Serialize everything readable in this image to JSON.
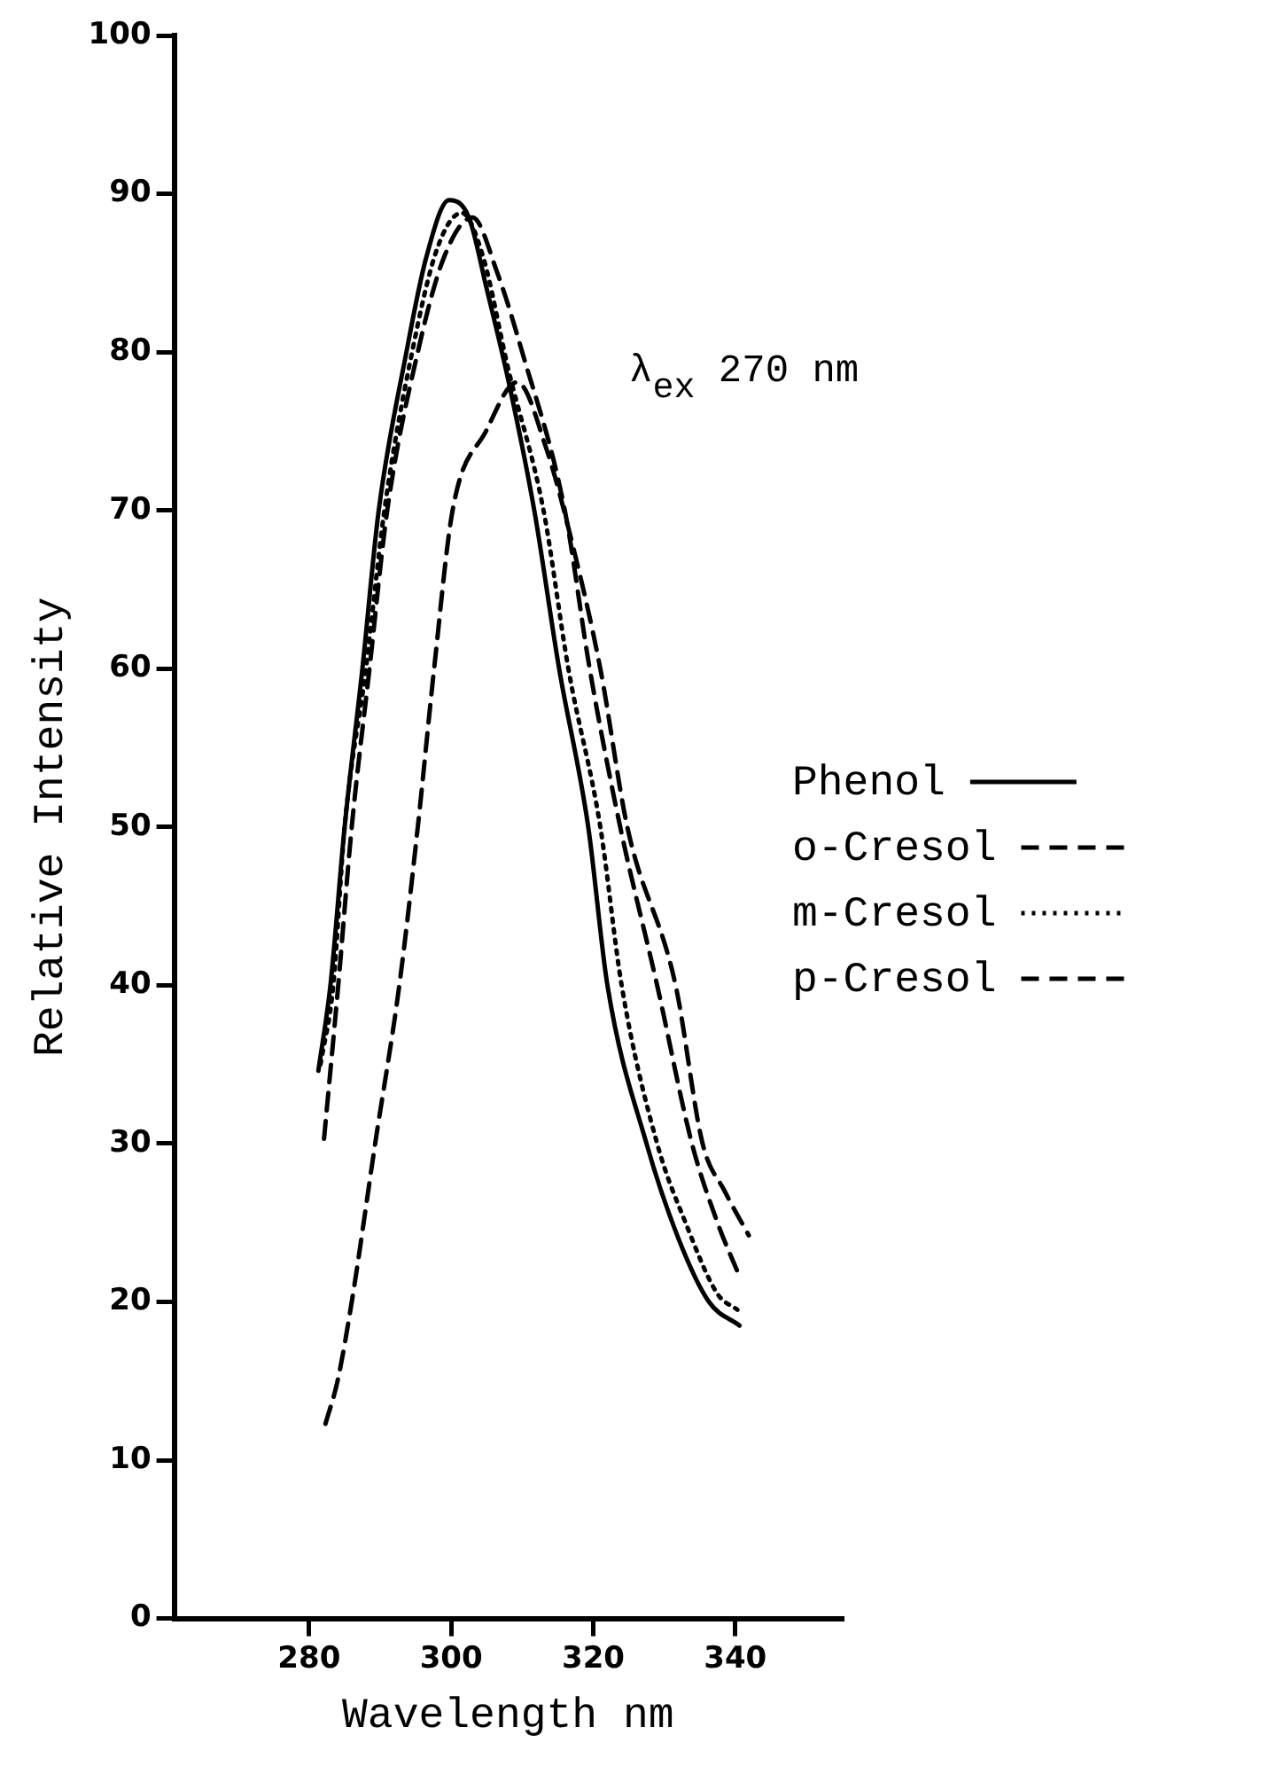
{
  "chart_data": {
    "type": "line",
    "xlabel": "Wavelength nm",
    "ylabel": "Relative Intensity",
    "xlim": [
      261,
      355
    ],
    "xticks": [
      280,
      300,
      320,
      340
    ],
    "ylim": [
      0,
      100
    ],
    "yticks": [
      0,
      10,
      20,
      30,
      40,
      50,
      60,
      70,
      80,
      90,
      100
    ],
    "grid": false,
    "legend": "right",
    "marker": "none",
    "annotations": [
      "λ$_{ex}$ 270 nm"
    ],
    "series": [
      {
        "name": "Phenol",
        "color": "#000000",
        "line_style": "solid",
        "x": [
          281.3,
          283,
          285,
          287.5,
          289.8,
          293.7,
          296.5,
          299.7,
          302.5,
          305,
          308.2,
          311.7,
          315.2,
          319.3,
          322,
          327.5,
          332,
          336.3,
          340.6
        ],
        "values": [
          34.6,
          40,
          50,
          60,
          70,
          80,
          86,
          89.6,
          88.5,
          84,
          77.9,
          70,
          60,
          50,
          40,
          30,
          24,
          20,
          18.5
        ]
      },
      {
        "name": "o-Cresol",
        "color": "#000000",
        "line_style": "dashed",
        "x": [
          282.1,
          284.1,
          286,
          288.5,
          291,
          295.3,
          299,
          303,
          306.5,
          310,
          316,
          319.5,
          323.8,
          329,
          333.9,
          337.5,
          340.6
        ],
        "values": [
          30.3,
          40,
          50,
          60,
          70,
          80,
          86,
          88.5,
          85,
          80,
          70,
          60,
          50,
          40,
          30,
          25,
          21.6
        ]
      },
      {
        "name": "m-Cresol",
        "color": "#000000",
        "line_style": "dotted",
        "x": [
          281.6,
          283.4,
          285,
          288,
          290.6,
          294.5,
          298,
          301.5,
          304.5,
          308,
          313,
          316.5,
          321,
          324,
          329,
          333,
          337.5,
          340.3
        ],
        "values": [
          35,
          40,
          50,
          60,
          70,
          80,
          86.5,
          88.8,
          86,
          79,
          70,
          60,
          50,
          40,
          30,
          25,
          20.5,
          19.5
        ]
      },
      {
        "name": "p-Cresol",
        "color": "#000000",
        "line_style": "dashed",
        "x": [
          282.3,
          284,
          286,
          289.3,
          292.7,
          295.3,
          297.6,
          300.2,
          304.9,
          309.3,
          313.4,
          317,
          321,
          324.8,
          331.6,
          335.4,
          338.5,
          341.9
        ],
        "values": [
          12.3,
          15,
          20,
          30,
          40,
          50,
          60,
          70,
          75,
          78.1,
          73.9,
          68,
          60,
          50,
          40,
          30,
          27,
          24.2
        ]
      }
    ]
  }
}
